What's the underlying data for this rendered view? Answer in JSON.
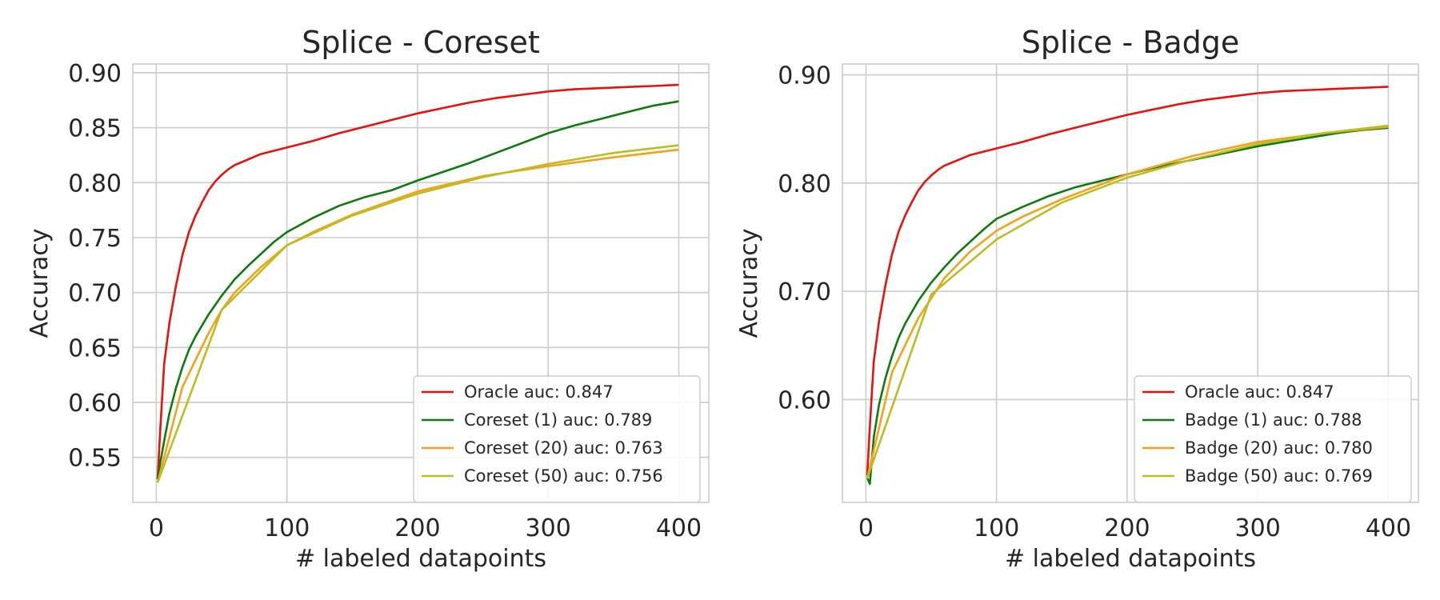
{
  "chart_data": [
    {
      "type": "line",
      "title": "Splice - Coreset",
      "xlabel": "# labeled datapoints",
      "ylabel": "Accuracy",
      "xlim": [
        -18,
        423
      ],
      "ylim": [
        0.509,
        0.908
      ],
      "xticks": [
        0,
        100,
        200,
        300,
        400
      ],
      "xtick_labels": [
        "0",
        "100",
        "200",
        "300",
        "400"
      ],
      "yticks": [
        0.55,
        0.6,
        0.65,
        0.7,
        0.75,
        0.8,
        0.85,
        0.9
      ],
      "ytick_labels": [
        "0.55",
        "0.60",
        "0.65",
        "0.70",
        "0.75",
        "0.80",
        "0.85",
        "0.90"
      ],
      "grid": true,
      "legend_position": "lower-right",
      "series": [
        {
          "name": "Oracle auc: 0.847",
          "color": "#e8120c",
          "x": [
            1,
            3,
            6,
            10,
            15,
            20,
            25,
            30,
            35,
            40,
            45,
            50,
            55,
            60,
            70,
            80,
            90,
            100,
            120,
            140,
            160,
            180,
            200,
            220,
            240,
            260,
            280,
            300,
            320,
            340,
            360,
            380,
            400
          ],
          "y": [
            0.53,
            0.575,
            0.635,
            0.672,
            0.706,
            0.734,
            0.755,
            0.77,
            0.782,
            0.793,
            0.801,
            0.807,
            0.812,
            0.816,
            0.821,
            0.826,
            0.829,
            0.832,
            0.838,
            0.845,
            0.851,
            0.857,
            0.863,
            0.868,
            0.873,
            0.877,
            0.88,
            0.883,
            0.885,
            0.886,
            0.887,
            0.888,
            0.889
          ]
        },
        {
          "name": "Coreset (1) auc: 0.789",
          "color": "#0f7a0f",
          "x": [
            1,
            3,
            6,
            10,
            15,
            20,
            25,
            30,
            40,
            50,
            60,
            70,
            80,
            90,
            100,
            120,
            140,
            160,
            180,
            200,
            220,
            240,
            260,
            280,
            300,
            320,
            340,
            360,
            380,
            400
          ],
          "y": [
            0.53,
            0.545,
            0.565,
            0.59,
            0.613,
            0.632,
            0.648,
            0.66,
            0.68,
            0.697,
            0.712,
            0.724,
            0.735,
            0.746,
            0.755,
            0.768,
            0.779,
            0.787,
            0.793,
            0.802,
            0.81,
            0.818,
            0.827,
            0.836,
            0.845,
            0.852,
            0.858,
            0.864,
            0.87,
            0.874
          ]
        },
        {
          "name": "Coreset (20) auc: 0.763",
          "color": "#f5a21a",
          "x": [
            1,
            20,
            40,
            50,
            60,
            80,
            100,
            120,
            150,
            200,
            250,
            300,
            350,
            400
          ],
          "y": [
            0.527,
            0.614,
            0.663,
            0.684,
            0.7,
            0.723,
            0.743,
            0.755,
            0.771,
            0.792,
            0.806,
            0.815,
            0.823,
            0.83
          ]
        },
        {
          "name": "Coreset (50) auc: 0.756",
          "color": "#bcbd22",
          "x": [
            1,
            50,
            100,
            150,
            200,
            250,
            300,
            350,
            400
          ],
          "y": [
            0.527,
            0.684,
            0.743,
            0.77,
            0.79,
            0.805,
            0.817,
            0.827,
            0.834
          ]
        }
      ]
    },
    {
      "type": "line",
      "title": "Splice - Badge",
      "xlabel": "# labeled datapoints",
      "ylabel": "Accuracy",
      "xlim": [
        -18,
        423
      ],
      "ylim": [
        0.505,
        0.91
      ],
      "xticks": [
        0,
        100,
        200,
        300,
        400
      ],
      "xtick_labels": [
        "0",
        "100",
        "200",
        "300",
        "400"
      ],
      "yticks": [
        0.6,
        0.7,
        0.8,
        0.9
      ],
      "ytick_labels": [
        "0.60",
        "0.70",
        "0.80",
        "0.90"
      ],
      "grid": true,
      "legend_position": "lower-right",
      "series": [
        {
          "name": "Oracle auc: 0.847",
          "color": "#e8120c",
          "x": [
            1,
            3,
            6,
            10,
            15,
            20,
            25,
            30,
            35,
            40,
            45,
            50,
            55,
            60,
            70,
            80,
            90,
            100,
            120,
            140,
            160,
            180,
            200,
            220,
            240,
            260,
            280,
            300,
            320,
            340,
            360,
            380,
            400
          ],
          "y": [
            0.53,
            0.575,
            0.635,
            0.672,
            0.706,
            0.734,
            0.755,
            0.77,
            0.782,
            0.793,
            0.801,
            0.807,
            0.812,
            0.816,
            0.821,
            0.826,
            0.829,
            0.832,
            0.838,
            0.845,
            0.851,
            0.857,
            0.863,
            0.868,
            0.873,
            0.877,
            0.88,
            0.883,
            0.885,
            0.886,
            0.887,
            0.888,
            0.889
          ]
        },
        {
          "name": "Badge (1) auc: 0.788",
          "color": "#0f7a0f",
          "x": [
            1,
            3,
            6,
            10,
            15,
            20,
            25,
            30,
            40,
            50,
            60,
            70,
            80,
            90,
            100,
            120,
            140,
            160,
            180,
            200,
            220,
            240,
            260,
            280,
            300,
            320,
            340,
            360,
            380,
            400
          ],
          "y": [
            0.528,
            0.522,
            0.565,
            0.595,
            0.62,
            0.64,
            0.657,
            0.67,
            0.691,
            0.708,
            0.722,
            0.735,
            0.746,
            0.757,
            0.767,
            0.778,
            0.788,
            0.796,
            0.802,
            0.808,
            0.814,
            0.819,
            0.824,
            0.829,
            0.834,
            0.838,
            0.842,
            0.846,
            0.849,
            0.851
          ]
        },
        {
          "name": "Badge (20) auc: 0.780",
          "color": "#f5a21a",
          "x": [
            1,
            20,
            40,
            60,
            80,
            100,
            120,
            150,
            200,
            250,
            300,
            350,
            400
          ],
          "y": [
            0.527,
            0.625,
            0.675,
            0.712,
            0.737,
            0.756,
            0.769,
            0.785,
            0.808,
            0.825,
            0.838,
            0.846,
            0.852
          ]
        },
        {
          "name": "Badge (50) auc: 0.769",
          "color": "#bcbd22",
          "x": [
            1,
            50,
            100,
            150,
            200,
            250,
            300,
            350,
            400
          ],
          "y": [
            0.527,
            0.697,
            0.748,
            0.782,
            0.805,
            0.822,
            0.836,
            0.846,
            0.853
          ]
        }
      ]
    }
  ]
}
